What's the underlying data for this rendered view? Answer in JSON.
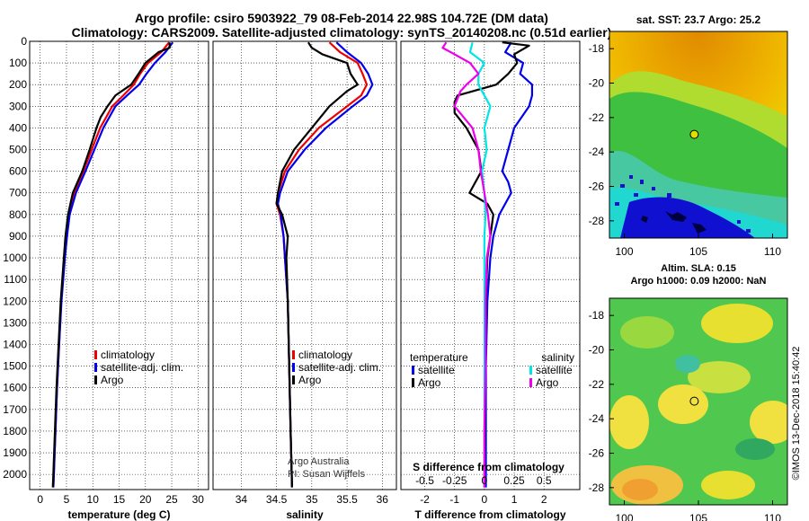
{
  "title": {
    "line1": "Argo profile: csiro 5903922_79 08-Feb-2014 22.98S 104.72E (DM data)",
    "line2": "Climatology: CARS2009. Satellite-adjusted climatology: synTS_20140208.nc (0.51d earlier)"
  },
  "colors": {
    "climatology": "#ee0000",
    "satellite": "#0000ee",
    "argo": "#000000",
    "sat_salinity": "#00e5e5",
    "argo_salinity": "#ee00ee"
  },
  "depth_ticks": [
    "0",
    "100",
    "200",
    "300",
    "400",
    "500",
    "600",
    "700",
    "800",
    "900",
    "1000",
    "1100",
    "1200",
    "1300",
    "1400",
    "1500",
    "1600",
    "1700",
    "1800",
    "1900",
    "2000"
  ],
  "labels": {
    "argo_australia": "Argo Australia",
    "pi": "PI: Susan Wijffels",
    "imos": "©IMOS 13-Dec-2018 15:40:42"
  },
  "chart_data": [
    {
      "type": "line",
      "title": "",
      "xlabel": "temperature (deg C)",
      "ylabel": "depth",
      "xlim": [
        -2,
        32
      ],
      "ylim": [
        2070,
        0
      ],
      "xticks": [
        "0",
        "5",
        "10",
        "15",
        "20",
        "25",
        "30"
      ],
      "legend": [
        "climatology",
        "satellite-adj. clim.",
        "Argo"
      ],
      "series": [
        {
          "name": "climatology",
          "depth": [
            5,
            50,
            100,
            150,
            200,
            250,
            300,
            400,
            500,
            600,
            700,
            800,
            900,
            1000,
            1200,
            1400,
            1600,
            1800,
            2000,
            2060
          ],
          "values": [
            24.5,
            23,
            20.5,
            19,
            17.8,
            15.8,
            13.7,
            11.4,
            9.8,
            8.2,
            6.5,
            5.5,
            5.0,
            4.6,
            4.0,
            3.6,
            3.2,
            2.9,
            2.6,
            2.5
          ]
        },
        {
          "name": "satellite-adj. clim.",
          "depth": [
            5,
            50,
            100,
            150,
            200,
            250,
            300,
            400,
            500,
            600,
            700,
            800,
            900,
            1000,
            1200,
            1400,
            1600,
            1800,
            2000,
            2060
          ],
          "values": [
            25.2,
            23.8,
            21.8,
            20.2,
            18.8,
            16.5,
            14.3,
            12,
            10.3,
            8.6,
            6.8,
            5.6,
            5.1,
            4.7,
            4.05,
            3.6,
            3.2,
            2.9,
            2.6,
            2.5
          ]
        },
        {
          "name": "Argo",
          "depth": [
            5,
            30,
            50,
            100,
            150,
            200,
            250,
            300,
            350,
            400,
            500,
            600,
            700,
            800,
            900,
            1000,
            1200,
            1400,
            1600,
            1800,
            2000,
            2060
          ],
          "values": [
            24.6,
            24.6,
            22.5,
            20,
            18.7,
            17.3,
            14.3,
            12.8,
            11.5,
            10.7,
            9.4,
            8.0,
            6.2,
            5.3,
            4.8,
            4.5,
            3.9,
            3.5,
            3.1,
            2.8,
            2.5,
            2.4
          ]
        }
      ]
    },
    {
      "type": "line",
      "title": "",
      "xlabel": "salinity",
      "ylabel": "depth",
      "xlim": [
        33.6,
        36.2
      ],
      "ylim": [
        2070,
        0
      ],
      "xticks": [
        "34",
        "34.5",
        "35",
        "35.5",
        "36"
      ],
      "legend": [
        "climatology",
        "satellite-adj. clim.",
        "Argo"
      ],
      "series": [
        {
          "name": "climatology",
          "depth": [
            5,
            50,
            100,
            150,
            200,
            250,
            300,
            400,
            500,
            600,
            700,
            750,
            800,
            900,
            1000,
            1200,
            1500,
            1800,
            2060
          ],
          "values": [
            35.25,
            35.4,
            35.65,
            35.72,
            35.78,
            35.7,
            35.5,
            35.1,
            34.82,
            34.62,
            34.52,
            34.5,
            34.55,
            34.6,
            34.62,
            34.66,
            34.68,
            34.7,
            34.72
          ]
        },
        {
          "name": "satellite-adj. clim.",
          "depth": [
            5,
            50,
            100,
            150,
            200,
            250,
            300,
            400,
            500,
            600,
            700,
            750,
            800,
            900,
            1000,
            1200,
            1500,
            1800,
            2060
          ],
          "values": [
            35.35,
            35.5,
            35.7,
            35.8,
            35.86,
            35.78,
            35.58,
            35.2,
            34.9,
            34.66,
            34.55,
            34.52,
            34.56,
            34.6,
            34.62,
            34.66,
            34.68,
            34.7,
            34.72
          ]
        },
        {
          "name": "Argo",
          "depth": [
            5,
            30,
            60,
            100,
            150,
            200,
            230,
            300,
            400,
            500,
            600,
            700,
            750,
            800,
            900,
            1000,
            1200,
            1500,
            1800,
            2060
          ],
          "values": [
            34.95,
            35.0,
            35.15,
            35.5,
            35.55,
            35.65,
            35.5,
            35.25,
            35.0,
            34.75,
            34.58,
            34.52,
            34.5,
            34.58,
            34.66,
            34.64,
            34.66,
            34.68,
            34.7,
            34.72
          ]
        }
      ]
    },
    {
      "type": "line",
      "title": "",
      "xlabel": "T difference from climatology",
      "x2label": "S difference from climatology",
      "ylabel": "depth",
      "xlim": [
        -2.8,
        3.2
      ],
      "ylim": [
        2070,
        0
      ],
      "xticks": [
        "-2",
        "-1",
        "0",
        "1",
        "2"
      ],
      "x2ticks": [
        "-0.5",
        "-0.25",
        "0",
        "0.25",
        "0.5"
      ],
      "legend_temperature_title": "temperature",
      "legend_salinity_title": "salinity",
      "legend": [
        "satellite",
        "Argo",
        "satellite",
        "Argo"
      ],
      "series": [
        {
          "name": "temperature satellite",
          "depth": [
            5,
            50,
            100,
            150,
            200,
            250,
            300,
            400,
            500,
            600,
            650,
            700,
            800,
            900,
            1000,
            1200,
            1500,
            1800,
            2060
          ],
          "values": [
            0.9,
            0.7,
            1.3,
            1.2,
            1.6,
            1.6,
            1.5,
            1.0,
            0.8,
            0.6,
            0.8,
            0.9,
            0.5,
            0.3,
            0.2,
            0.1,
            0.05,
            0.05,
            0.05
          ]
        },
        {
          "name": "temperature Argo",
          "depth": [
            5,
            20,
            60,
            100,
            150,
            200,
            250,
            280,
            330,
            400,
            500,
            600,
            700,
            750,
            800,
            900,
            1000,
            1200,
            1500,
            1800,
            2060
          ],
          "values": [
            0.6,
            1.5,
            1.0,
            1.1,
            0.8,
            0.4,
            -0.9,
            -1.0,
            -1.0,
            -0.6,
            -0.2,
            -0.1,
            -0.5,
            0.1,
            0.3,
            0.2,
            0.1,
            0.05,
            0.03,
            0.02,
            0.0
          ]
        },
        {
          "name": "salinity satellite",
          "depth": [
            5,
            50,
            100,
            150,
            200,
            300,
            400,
            500,
            600,
            700,
            800,
            900,
            1000,
            1200,
            1500,
            1800,
            2060
          ],
          "values": [
            -0.1,
            -0.12,
            0.0,
            -0.05,
            -0.05,
            0.05,
            0.0,
            0.02,
            -0.02,
            0.0,
            0.01,
            0.0,
            0.0,
            0.0,
            0.0,
            0.0,
            0.0
          ]
        },
        {
          "name": "salinity Argo",
          "depth": [
            5,
            30,
            60,
            100,
            150,
            200,
            230,
            300,
            400,
            500,
            600,
            700,
            800,
            900,
            1000,
            1200,
            1500,
            1800,
            2060
          ],
          "values": [
            -0.32,
            -0.35,
            -0.25,
            -0.12,
            -0.05,
            -0.15,
            -0.2,
            -0.25,
            -0.1,
            -0.05,
            -0.03,
            0.0,
            0.03,
            0.05,
            0.02,
            0.01,
            0.01,
            0.0,
            0.0
          ]
        }
      ]
    },
    {
      "type": "heatmap",
      "title": "sat. SST: 23.7 Argo: 25.2",
      "xticks": [
        "100",
        "105",
        "110"
      ],
      "yticks": [
        "-18",
        "-20",
        "-22",
        "-24",
        "-26",
        "-28"
      ],
      "xlim": [
        99,
        111
      ],
      "ylim": [
        -29,
        -17
      ],
      "profile_lon": 104.72,
      "profile_lat": -22.98
    },
    {
      "type": "heatmap",
      "title_line1": "Altim. SLA: 0.15",
      "title_line2": "Argo h1000: 0.09 h2000: NaN",
      "xticks": [
        "100",
        "105",
        "110"
      ],
      "yticks": [
        "-18",
        "-20",
        "-22",
        "-24",
        "-26",
        "-28"
      ],
      "xlim": [
        99,
        111
      ],
      "ylim": [
        -29,
        -17
      ],
      "profile_lon": 104.72,
      "profile_lat": -22.98
    }
  ]
}
